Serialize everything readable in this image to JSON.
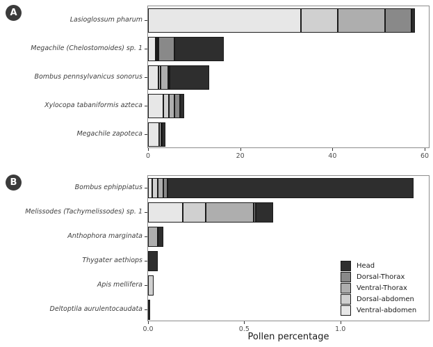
{
  "figure": {
    "badges": [
      "A",
      "B"
    ],
    "xlabel": "Pollen percentage"
  },
  "legend": {
    "position": "bottom-right-of-panel-B",
    "items": [
      {
        "label": "Head",
        "color": "#2e2e2e"
      },
      {
        "label": "Dorsal-Thorax",
        "color": "#898989"
      },
      {
        "label": "Ventral-Thorax",
        "color": "#aeaeae"
      },
      {
        "label": "Dorsal-abdomen",
        "color": "#d0d0d0"
      },
      {
        "label": "Ventral-abdomen",
        "color": "#e7e7e7"
      }
    ]
  },
  "chart_data": [
    {
      "type": "bar",
      "panel": "A",
      "orientation": "horizontal",
      "stacked": true,
      "grid": false,
      "categories": [
        "Lasioglossum pharum",
        "Megachile (Chelostomoides) sp. 1",
        "Bombus pennsylvanicus sonorus",
        "Xylocopa tabaniformis azteca",
        "Megachile zapoteca"
      ],
      "xlim": [
        0,
        60.9
      ],
      "x_ticks": [
        {
          "value": 0,
          "label": "0"
        },
        {
          "value": 20,
          "label": "20"
        },
        {
          "value": 40,
          "label": "40"
        },
        {
          "value": 60,
          "label": "60"
        }
      ],
      "series": [
        {
          "name": "Ventral-abdomen",
          "values": [
            33.1,
            1.6,
            2.2,
            3.3,
            2.4
          ]
        },
        {
          "name": "Dorsal-abdomen",
          "values": [
            8.1,
            0.3,
            0.5,
            1.2,
            0.4
          ]
        },
        {
          "name": "Ventral-Thorax",
          "values": [
            10.2,
            0.3,
            1.6,
            1.2,
            0.15
          ]
        },
        {
          "name": "Dorsal-Thorax",
          "values": [
            5.7,
            3.5,
            0.3,
            1.2,
            0
          ]
        },
        {
          "name": "Head",
          "values": [
            0.8,
            10.8,
            8.6,
            1.0,
            0.8
          ]
        }
      ]
    },
    {
      "type": "bar",
      "panel": "B",
      "orientation": "horizontal",
      "stacked": true,
      "grid": false,
      "categories": [
        "Bombus ephippiatus",
        "Melissodes (Tachymelissodes) sp. 1",
        "Anthophora marginata",
        "Thygater aethiops",
        "Apis mellifera",
        "Deltoptila aurulentocaudata"
      ],
      "xlim": [
        0,
        1.46
      ],
      "x_ticks": [
        {
          "value": 0,
          "label": "0.0"
        },
        {
          "value": 0.5,
          "label": "0.5"
        },
        {
          "value": 1.0,
          "label": "1.0"
        }
      ],
      "series": [
        {
          "name": "Ventral-abdomen",
          "values": [
            0.02,
            0.18,
            0,
            0,
            0,
            0
          ]
        },
        {
          "name": "Dorsal-abdomen",
          "values": [
            0.03,
            0.12,
            0,
            0,
            0.03,
            0
          ]
        },
        {
          "name": "Ventral-Thorax",
          "values": [
            0.03,
            0.25,
            0.05,
            0,
            0,
            0
          ]
        },
        {
          "name": "Dorsal-Thorax",
          "values": [
            0.02,
            0.01,
            0,
            0,
            0,
            0
          ]
        },
        {
          "name": "Head",
          "values": [
            1.28,
            0.09,
            0.03,
            0.05,
            0,
            0.012
          ]
        }
      ]
    }
  ]
}
